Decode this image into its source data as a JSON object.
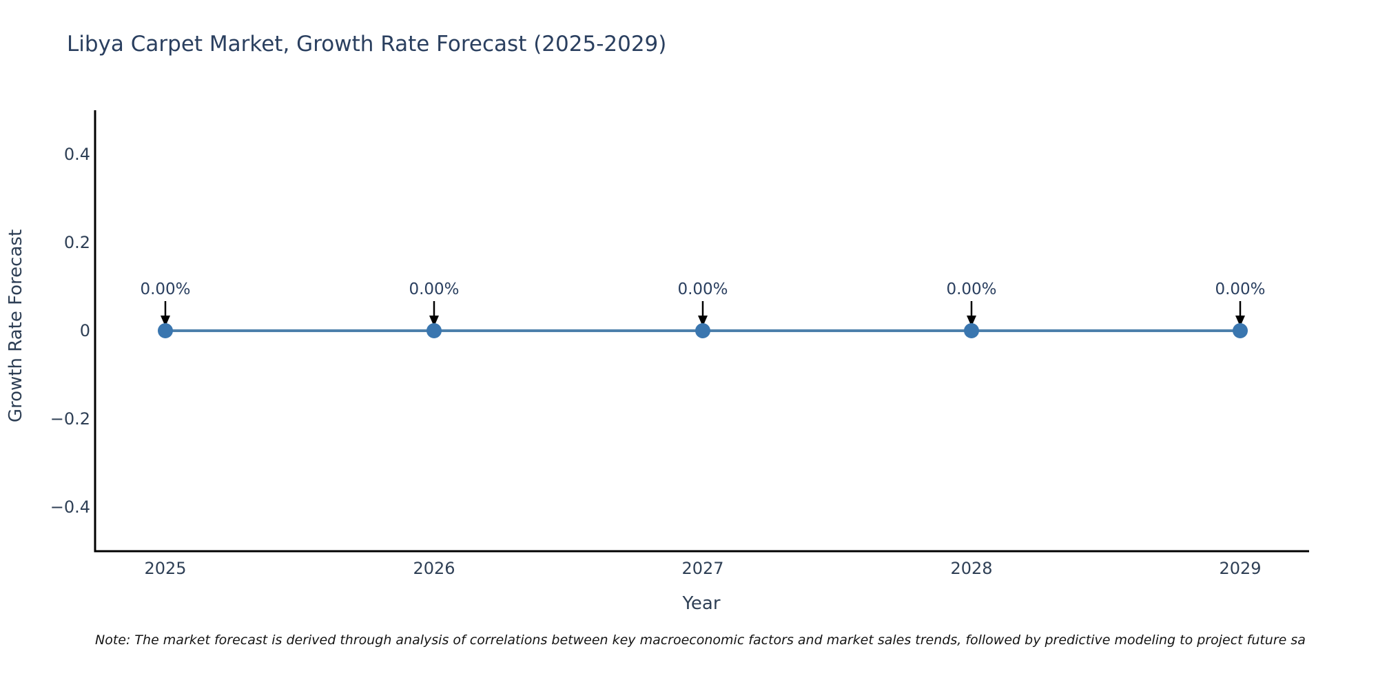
{
  "chart_data": {
    "type": "line",
    "title": "Libya Carpet Market, Growth Rate Forecast (2025-2029)",
    "xlabel": "Year",
    "ylabel": "Growth Rate Forecast",
    "categories": [
      "2025",
      "2026",
      "2027",
      "2028",
      "2029"
    ],
    "values": [
      0,
      0,
      0,
      0,
      0
    ],
    "point_labels": [
      "0.00%",
      "0.00%",
      "0.00%",
      "0.00%",
      "0.00%"
    ],
    "y_ticks": [
      0.4,
      0.2,
      0,
      -0.2,
      -0.4
    ],
    "y_tick_labels": [
      "0.4",
      "0.2",
      "0",
      "−0.2",
      "−0.4"
    ],
    "ylim": [
      -0.5,
      0.5
    ],
    "grid": false,
    "legend": false,
    "colors": {
      "line": "#4d80ab",
      "marker": "#3a76af",
      "axis": "#000000",
      "arrow": "#000000",
      "text": "#2a3f5f"
    },
    "note": "Note: The market forecast is derived through analysis of correlations between key macroeconomic factors and market sales trends, followed by predictive modeling to project future sa"
  }
}
